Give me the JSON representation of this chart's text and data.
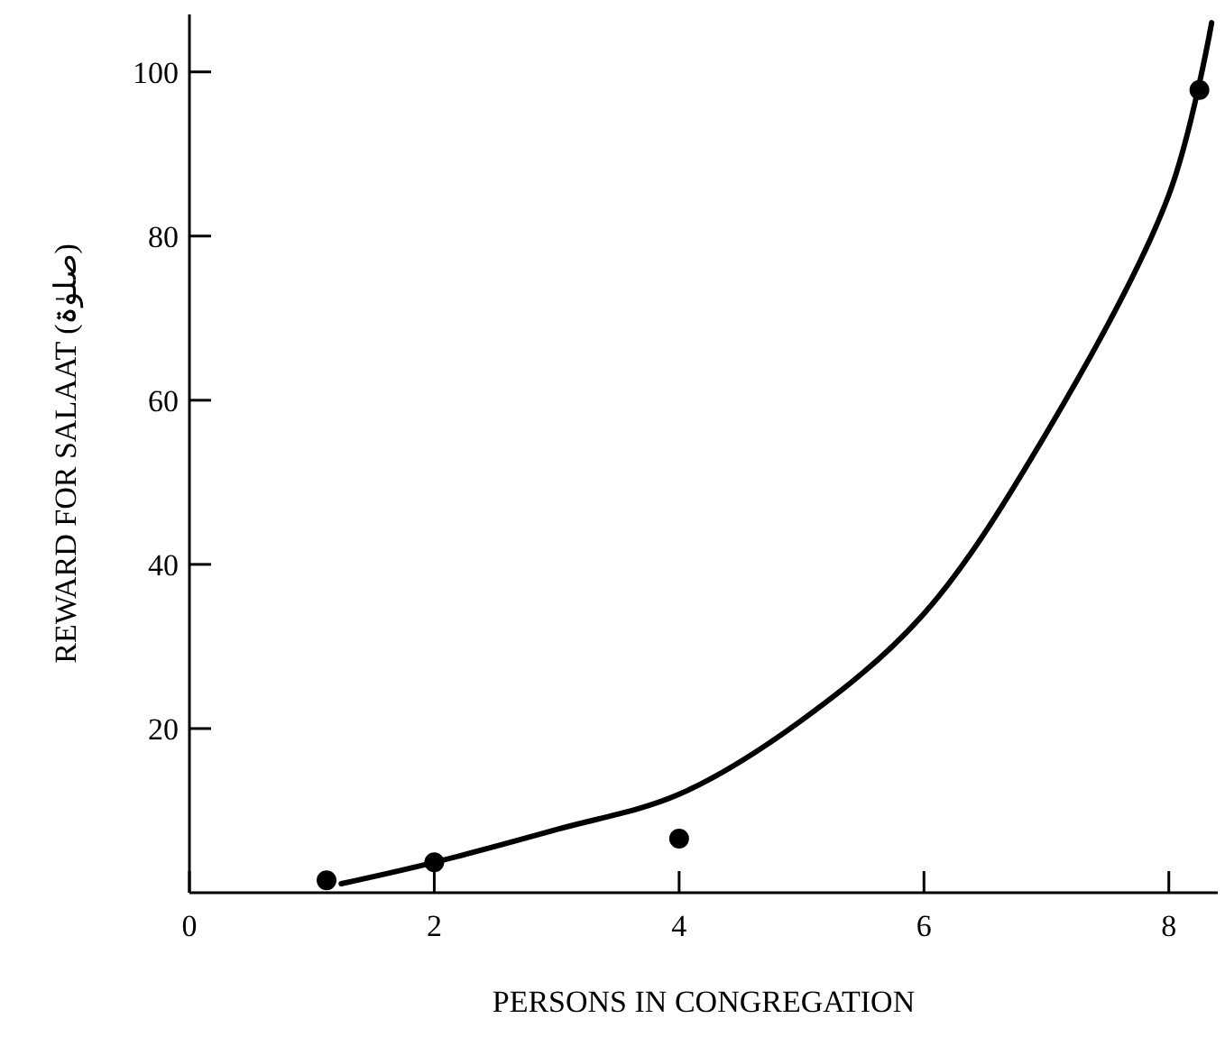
{
  "chart_data": {
    "type": "scatter",
    "xlabel": "PERSONS IN CONGREGATION",
    "ylabel": "REWARD FOR SALAAT (صلوٰۃ)",
    "xlim": [
      0,
      8.4
    ],
    "ylim": [
      0,
      107
    ],
    "xticks": [
      0,
      2,
      4,
      6,
      8
    ],
    "yticks": [
      20,
      40,
      60,
      80,
      100
    ],
    "grid": false,
    "series": [
      {
        "type": "line",
        "color": "#000000",
        "marker": "none",
        "line_style": "solid",
        "x": [
          1.24,
          2,
          3,
          4,
          5,
          6,
          7,
          8,
          8.35
        ],
        "values": [
          1.1,
          3.7,
          7.7,
          12,
          21,
          34,
          56,
          85,
          106
        ]
      },
      {
        "color": "#000000",
        "marker": "circle",
        "x": [
          1.12,
          2,
          4,
          8.25
        ],
        "values": [
          1.5,
          3.7,
          6.6,
          97.8
        ]
      }
    ]
  }
}
